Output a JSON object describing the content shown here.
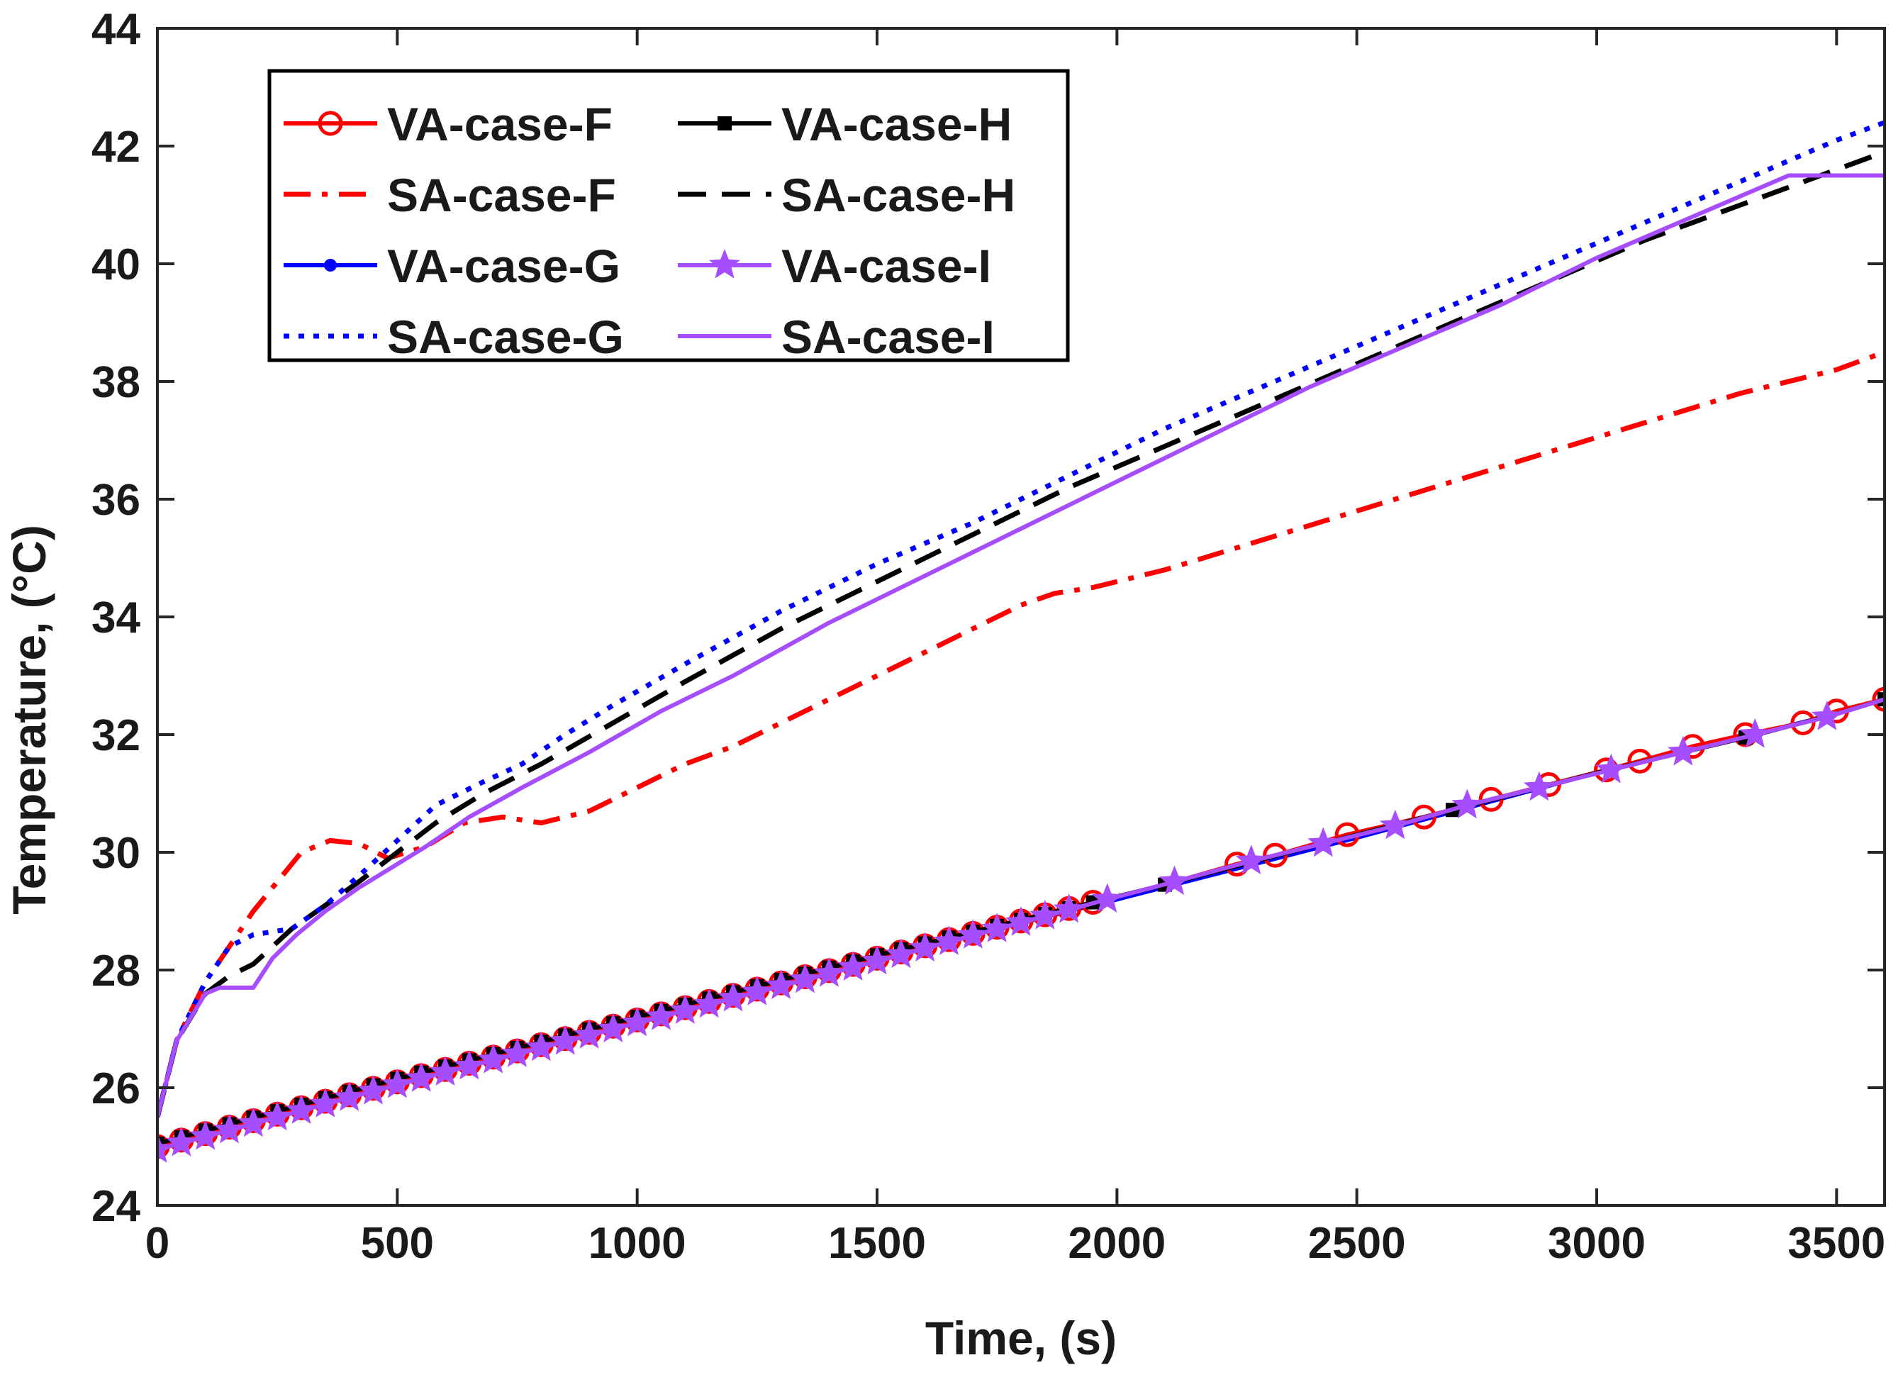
{
  "chart_data": {
    "type": "line",
    "title": "",
    "xlabel": "Time, (s)",
    "ylabel": "Temperature, (°C)",
    "xlim": [
      0,
      3600
    ],
    "ylim": [
      24,
      44
    ],
    "xticks": [
      0,
      500,
      1000,
      1500,
      2000,
      2500,
      3000,
      3500
    ],
    "yticks": [
      24,
      26,
      28,
      30,
      32,
      34,
      36,
      38,
      40,
      42,
      44
    ],
    "grid": false,
    "legend_position": "top-left",
    "legend_columns": 2,
    "colors": {
      "red": "#ff0000",
      "black": "#000000",
      "blue": "#0000ff",
      "purple": "#a64dff",
      "axis": "#262626"
    },
    "series": [
      {
        "name": "VA-case-F",
        "color": "#ff0000",
        "style": "solid",
        "marker": "circle",
        "x": [
          0,
          500,
          1000,
          1500,
          1950,
          2100,
          2250,
          2330,
          2480,
          2640,
          2780,
          2900,
          3020,
          3090,
          3200,
          3310,
          3430,
          3500,
          3600
        ],
        "y": [
          25.0,
          26.1,
          27.15,
          28.2,
          29.15,
          29.45,
          29.8,
          29.95,
          30.3,
          30.6,
          30.9,
          31.15,
          31.4,
          31.55,
          31.8,
          32.0,
          32.2,
          32.4,
          32.6
        ],
        "marker_x": [
          0,
          50,
          100,
          150,
          200,
          250,
          300,
          350,
          400,
          450,
          500,
          550,
          600,
          650,
          700,
          750,
          800,
          850,
          900,
          950,
          1000,
          1050,
          1100,
          1150,
          1200,
          1250,
          1300,
          1350,
          1400,
          1450,
          1500,
          1550,
          1600,
          1650,
          1700,
          1750,
          1800,
          1850,
          1900,
          1950,
          2250,
          2330,
          2480,
          2640,
          2780,
          2900,
          3020,
          3090,
          3200,
          3310,
          3430,
          3500,
          3600
        ]
      },
      {
        "name": "SA-case-F",
        "color": "#ff0000",
        "style": "dashdot",
        "marker": "none",
        "x": [
          0,
          40,
          100,
          200,
          300,
          360,
          420,
          480,
          560,
          640,
          720,
          800,
          900,
          1000,
          1100,
          1200,
          1300,
          1400,
          1500,
          1600,
          1700,
          1800,
          1870,
          1950,
          2100,
          2300,
          2500,
          2700,
          2900,
          3100,
          3300,
          3500,
          3600
        ],
        "y": [
          25.5,
          26.8,
          27.8,
          29.0,
          30.0,
          30.2,
          30.15,
          29.9,
          30.1,
          30.5,
          30.6,
          30.5,
          30.7,
          31.1,
          31.5,
          31.8,
          32.2,
          32.6,
          33.0,
          33.4,
          33.8,
          34.2,
          34.4,
          34.5,
          34.8,
          35.3,
          35.8,
          36.3,
          36.8,
          37.3,
          37.8,
          38.2,
          38.5
        ]
      },
      {
        "name": "VA-case-G",
        "color": "#0000ff",
        "style": "solid",
        "marker": "dot",
        "x": [
          0,
          500,
          1000,
          1500,
          2000,
          2500,
          3000,
          3500,
          3600
        ],
        "y": [
          25.0,
          26.1,
          27.15,
          28.2,
          29.2,
          30.25,
          31.35,
          32.35,
          32.6
        ],
        "marker_x": []
      },
      {
        "name": "SA-case-G",
        "color": "#0000ff",
        "style": "dotted",
        "marker": "none",
        "x": [
          0,
          40,
          100,
          150,
          200,
          280,
          350,
          420,
          500,
          580,
          680,
          760,
          850,
          950,
          1100,
          1300,
          1500,
          1700,
          1900,
          2100,
          2300,
          2500,
          2700,
          2900,
          3100,
          3300,
          3500,
          3600
        ],
        "y": [
          25.5,
          26.8,
          27.8,
          28.4,
          28.6,
          28.7,
          29.1,
          29.6,
          30.2,
          30.8,
          31.2,
          31.5,
          32.0,
          32.5,
          33.2,
          34.1,
          34.9,
          35.6,
          36.4,
          37.2,
          37.9,
          38.6,
          39.3,
          40.0,
          40.7,
          41.4,
          42.1,
          42.4
        ]
      },
      {
        "name": "VA-case-H",
        "color": "#000000",
        "style": "solid",
        "marker": "square",
        "x": [
          0,
          500,
          1000,
          1500,
          2000,
          2100,
          2500,
          3000,
          3310,
          3500,
          3600
        ],
        "y": [
          25.05,
          26.15,
          27.2,
          28.25,
          29.25,
          29.45,
          30.3,
          31.35,
          31.95,
          32.35,
          32.6
        ],
        "marker_x": [
          0,
          50,
          100,
          150,
          200,
          250,
          300,
          350,
          400,
          450,
          500,
          550,
          600,
          650,
          700,
          750,
          800,
          850,
          900,
          950,
          1000,
          1050,
          1100,
          1150,
          1200,
          1250,
          1300,
          1350,
          1400,
          1450,
          1500,
          1550,
          1600,
          1650,
          1700,
          1750,
          1800,
          1850,
          1900,
          1950,
          2100,
          2700,
          3310,
          3600
        ]
      },
      {
        "name": "SA-case-H",
        "color": "#000000",
        "style": "dashed",
        "marker": "none",
        "x": [
          0,
          40,
          100,
          150,
          200,
          280,
          350,
          420,
          500,
          580,
          680,
          800,
          950,
          1100,
          1300,
          1500,
          1700,
          1900,
          2100,
          2300,
          2500,
          2700,
          2900,
          3100,
          3300,
          3500,
          3600
        ],
        "y": [
          25.5,
          26.8,
          27.6,
          27.9,
          28.1,
          28.7,
          29.1,
          29.5,
          30.0,
          30.5,
          31.0,
          31.5,
          32.2,
          32.9,
          33.8,
          34.6,
          35.4,
          36.2,
          36.9,
          37.6,
          38.3,
          39.0,
          39.7,
          40.4,
          41.0,
          41.6,
          41.9
        ]
      },
      {
        "name": "VA-case-I",
        "color": "#a64dff",
        "style": "solid",
        "marker": "star",
        "x": [
          0,
          500,
          1000,
          1500,
          1980,
          2120,
          2280,
          2430,
          2580,
          2730,
          2880,
          3030,
          3180,
          3330,
          3480,
          3600
        ],
        "y": [
          24.95,
          26.05,
          27.1,
          28.15,
          29.2,
          29.5,
          29.85,
          30.15,
          30.45,
          30.8,
          31.1,
          31.4,
          31.7,
          32.0,
          32.3,
          32.6
        ],
        "marker_x": [
          0,
          50,
          100,
          150,
          200,
          250,
          300,
          350,
          400,
          450,
          500,
          550,
          600,
          650,
          700,
          750,
          800,
          850,
          900,
          950,
          1000,
          1050,
          1100,
          1150,
          1200,
          1250,
          1300,
          1350,
          1400,
          1450,
          1500,
          1550,
          1600,
          1650,
          1700,
          1750,
          1800,
          1850,
          1900,
          1980,
          2120,
          2280,
          2430,
          2580,
          2730,
          2880,
          3030,
          3180,
          3330,
          3480
        ]
      },
      {
        "name": "SA-case-I",
        "color": "#a64dff",
        "style": "solid",
        "marker": "none",
        "x": [
          0,
          40,
          100,
          130,
          160,
          200,
          240,
          290,
          350,
          420,
          480,
          560,
          650,
          760,
          900,
          1050,
          1200,
          1400,
          1600,
          1800,
          2000,
          2200,
          2400,
          2600,
          2800,
          3000,
          3200,
          3400,
          3600
        ],
        "y": [
          25.5,
          26.8,
          27.6,
          27.7,
          27.7,
          27.7,
          28.2,
          28.6,
          29.0,
          29.4,
          29.7,
          30.1,
          30.6,
          31.1,
          31.7,
          32.4,
          33.0,
          33.9,
          34.7,
          35.5,
          36.3,
          37.1,
          37.9,
          38.6,
          39.3,
          40.1,
          40.8,
          41.5,
          41.5
        ]
      }
    ]
  }
}
